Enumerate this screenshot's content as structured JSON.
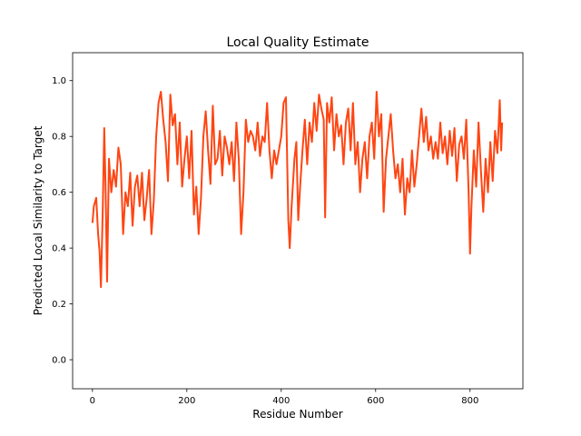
{
  "chart_data": {
    "type": "line",
    "title": "Local Quality Estimate",
    "xlabel": "Residue Number",
    "ylabel": "Predicted Local Similarity to Target",
    "x": [
      0,
      3,
      8,
      12,
      15,
      18,
      22,
      25,
      28,
      31,
      35,
      40,
      45,
      50,
      55,
      60,
      65,
      70,
      75,
      80,
      85,
      90,
      95,
      100,
      105,
      110,
      115,
      120,
      125,
      130,
      135,
      140,
      145,
      150,
      155,
      160,
      165,
      170,
      175,
      180,
      185,
      190,
      195,
      200,
      205,
      210,
      215,
      220,
      225,
      230,
      235,
      240,
      245,
      250,
      255,
      260,
      265,
      270,
      275,
      280,
      285,
      290,
      295,
      300,
      305,
      310,
      315,
      320,
      325,
      330,
      335,
      340,
      345,
      350,
      355,
      360,
      365,
      370,
      375,
      380,
      385,
      390,
      395,
      400,
      405,
      410,
      415,
      418,
      422,
      428,
      432,
      436,
      440,
      445,
      450,
      455,
      460,
      465,
      470,
      475,
      480,
      485,
      490,
      493,
      497,
      502,
      507,
      512,
      517,
      522,
      527,
      532,
      537,
      542,
      547,
      552,
      557,
      562,
      567,
      572,
      577,
      582,
      587,
      592,
      597,
      602,
      607,
      612,
      617,
      622,
      627,
      632,
      637,
      642,
      647,
      652,
      657,
      662,
      667,
      672,
      677,
      682,
      687,
      692,
      697,
      702,
      707,
      712,
      717,
      722,
      727,
      732,
      737,
      742,
      747,
      752,
      757,
      762,
      767,
      772,
      777,
      782,
      787,
      792,
      797,
      800,
      803,
      808,
      813,
      818,
      823,
      828,
      833,
      838,
      843,
      848,
      853,
      858,
      863,
      866,
      868
    ],
    "series": [
      {
        "color": "#ff4512",
        "values": [
          0.49,
          0.55,
          0.58,
          0.45,
          0.39,
          0.26,
          0.55,
          0.83,
          0.6,
          0.28,
          0.72,
          0.6,
          0.68,
          0.62,
          0.76,
          0.7,
          0.45,
          0.6,
          0.55,
          0.67,
          0.48,
          0.62,
          0.66,
          0.55,
          0.67,
          0.5,
          0.58,
          0.68,
          0.45,
          0.57,
          0.8,
          0.92,
          0.96,
          0.86,
          0.78,
          0.64,
          0.95,
          0.84,
          0.88,
          0.7,
          0.85,
          0.62,
          0.72,
          0.8,
          0.65,
          0.82,
          0.52,
          0.62,
          0.45,
          0.58,
          0.8,
          0.89,
          0.75,
          0.63,
          0.91,
          0.7,
          0.72,
          0.82,
          0.66,
          0.8,
          0.76,
          0.7,
          0.78,
          0.64,
          0.85,
          0.72,
          0.45,
          0.6,
          0.86,
          0.78,
          0.82,
          0.8,
          0.75,
          0.85,
          0.73,
          0.8,
          0.78,
          0.92,
          0.75,
          0.65,
          0.75,
          0.7,
          0.75,
          0.8,
          0.92,
          0.94,
          0.5,
          0.4,
          0.55,
          0.72,
          0.78,
          0.5,
          0.62,
          0.75,
          0.86,
          0.7,
          0.85,
          0.78,
          0.92,
          0.82,
          0.95,
          0.9,
          0.86,
          0.51,
          0.92,
          0.85,
          0.94,
          0.75,
          0.88,
          0.8,
          0.84,
          0.7,
          0.85,
          0.9,
          0.75,
          0.92,
          0.7,
          0.78,
          0.6,
          0.72,
          0.78,
          0.65,
          0.8,
          0.85,
          0.72,
          0.96,
          0.8,
          0.88,
          0.53,
          0.72,
          0.8,
          0.88,
          0.75,
          0.65,
          0.7,
          0.6,
          0.72,
          0.52,
          0.65,
          0.6,
          0.75,
          0.62,
          0.7,
          0.8,
          0.9,
          0.78,
          0.87,
          0.75,
          0.8,
          0.72,
          0.78,
          0.72,
          0.85,
          0.74,
          0.8,
          0.7,
          0.82,
          0.73,
          0.83,
          0.64,
          0.77,
          0.8,
          0.72,
          0.86,
          0.6,
          0.38,
          0.55,
          0.75,
          0.62,
          0.85,
          0.68,
          0.53,
          0.72,
          0.6,
          0.78,
          0.64,
          0.82,
          0.74,
          0.93,
          0.75,
          0.85
        ]
      }
    ],
    "xlim": [
      -42,
      912
    ],
    "ylim": [
      -0.104,
      1.1
    ],
    "xticks": [
      0,
      200,
      400,
      600,
      800
    ],
    "yticks": [
      {
        "value": 0,
        "label": "0.0"
      },
      0.2,
      0.4,
      0.6,
      0.8,
      {
        "value": 1,
        "label": "1.0"
      }
    ],
    "grid": false
  }
}
